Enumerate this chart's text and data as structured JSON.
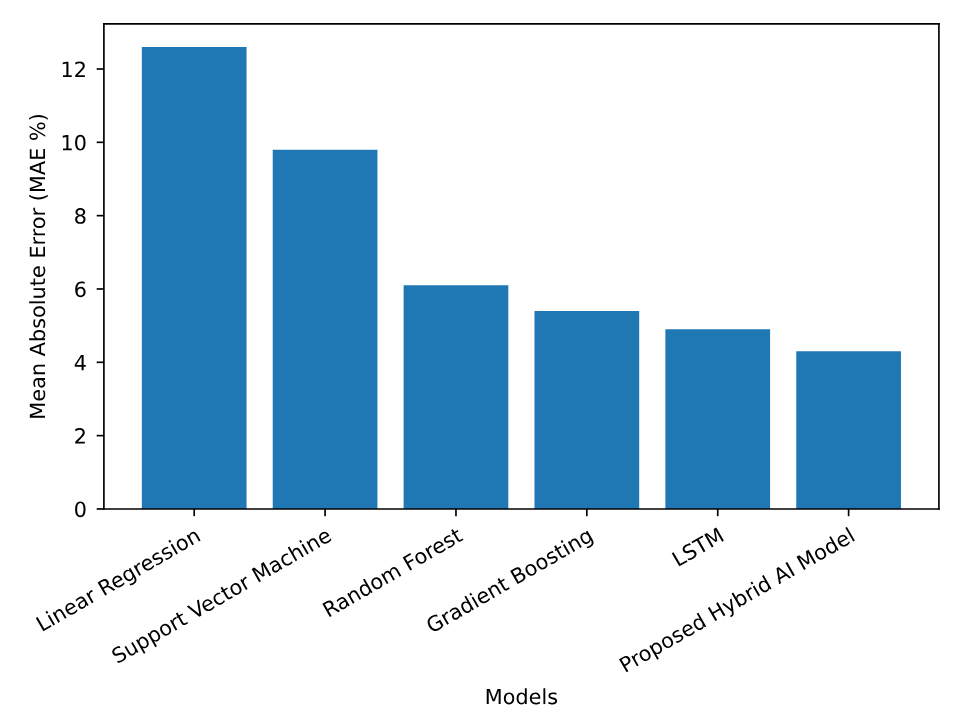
{
  "chart_data": {
    "type": "bar",
    "xlabel": "Models",
    "ylabel": "Mean Absolute Error (MAE %)",
    "categories": [
      "Linear Regression",
      "Support Vector Machine",
      "Random Forest",
      "Gradient Boosting",
      "LSTM",
      "Proposed Hybrid AI Model"
    ],
    "values": [
      12.6,
      9.8,
      6.1,
      5.4,
      4.9,
      4.3
    ],
    "color": "#1f77b4",
    "ylim": [
      0,
      13.23
    ],
    "yticks": [
      0,
      2,
      4,
      6,
      8,
      10,
      12
    ],
    "grid": false
  }
}
